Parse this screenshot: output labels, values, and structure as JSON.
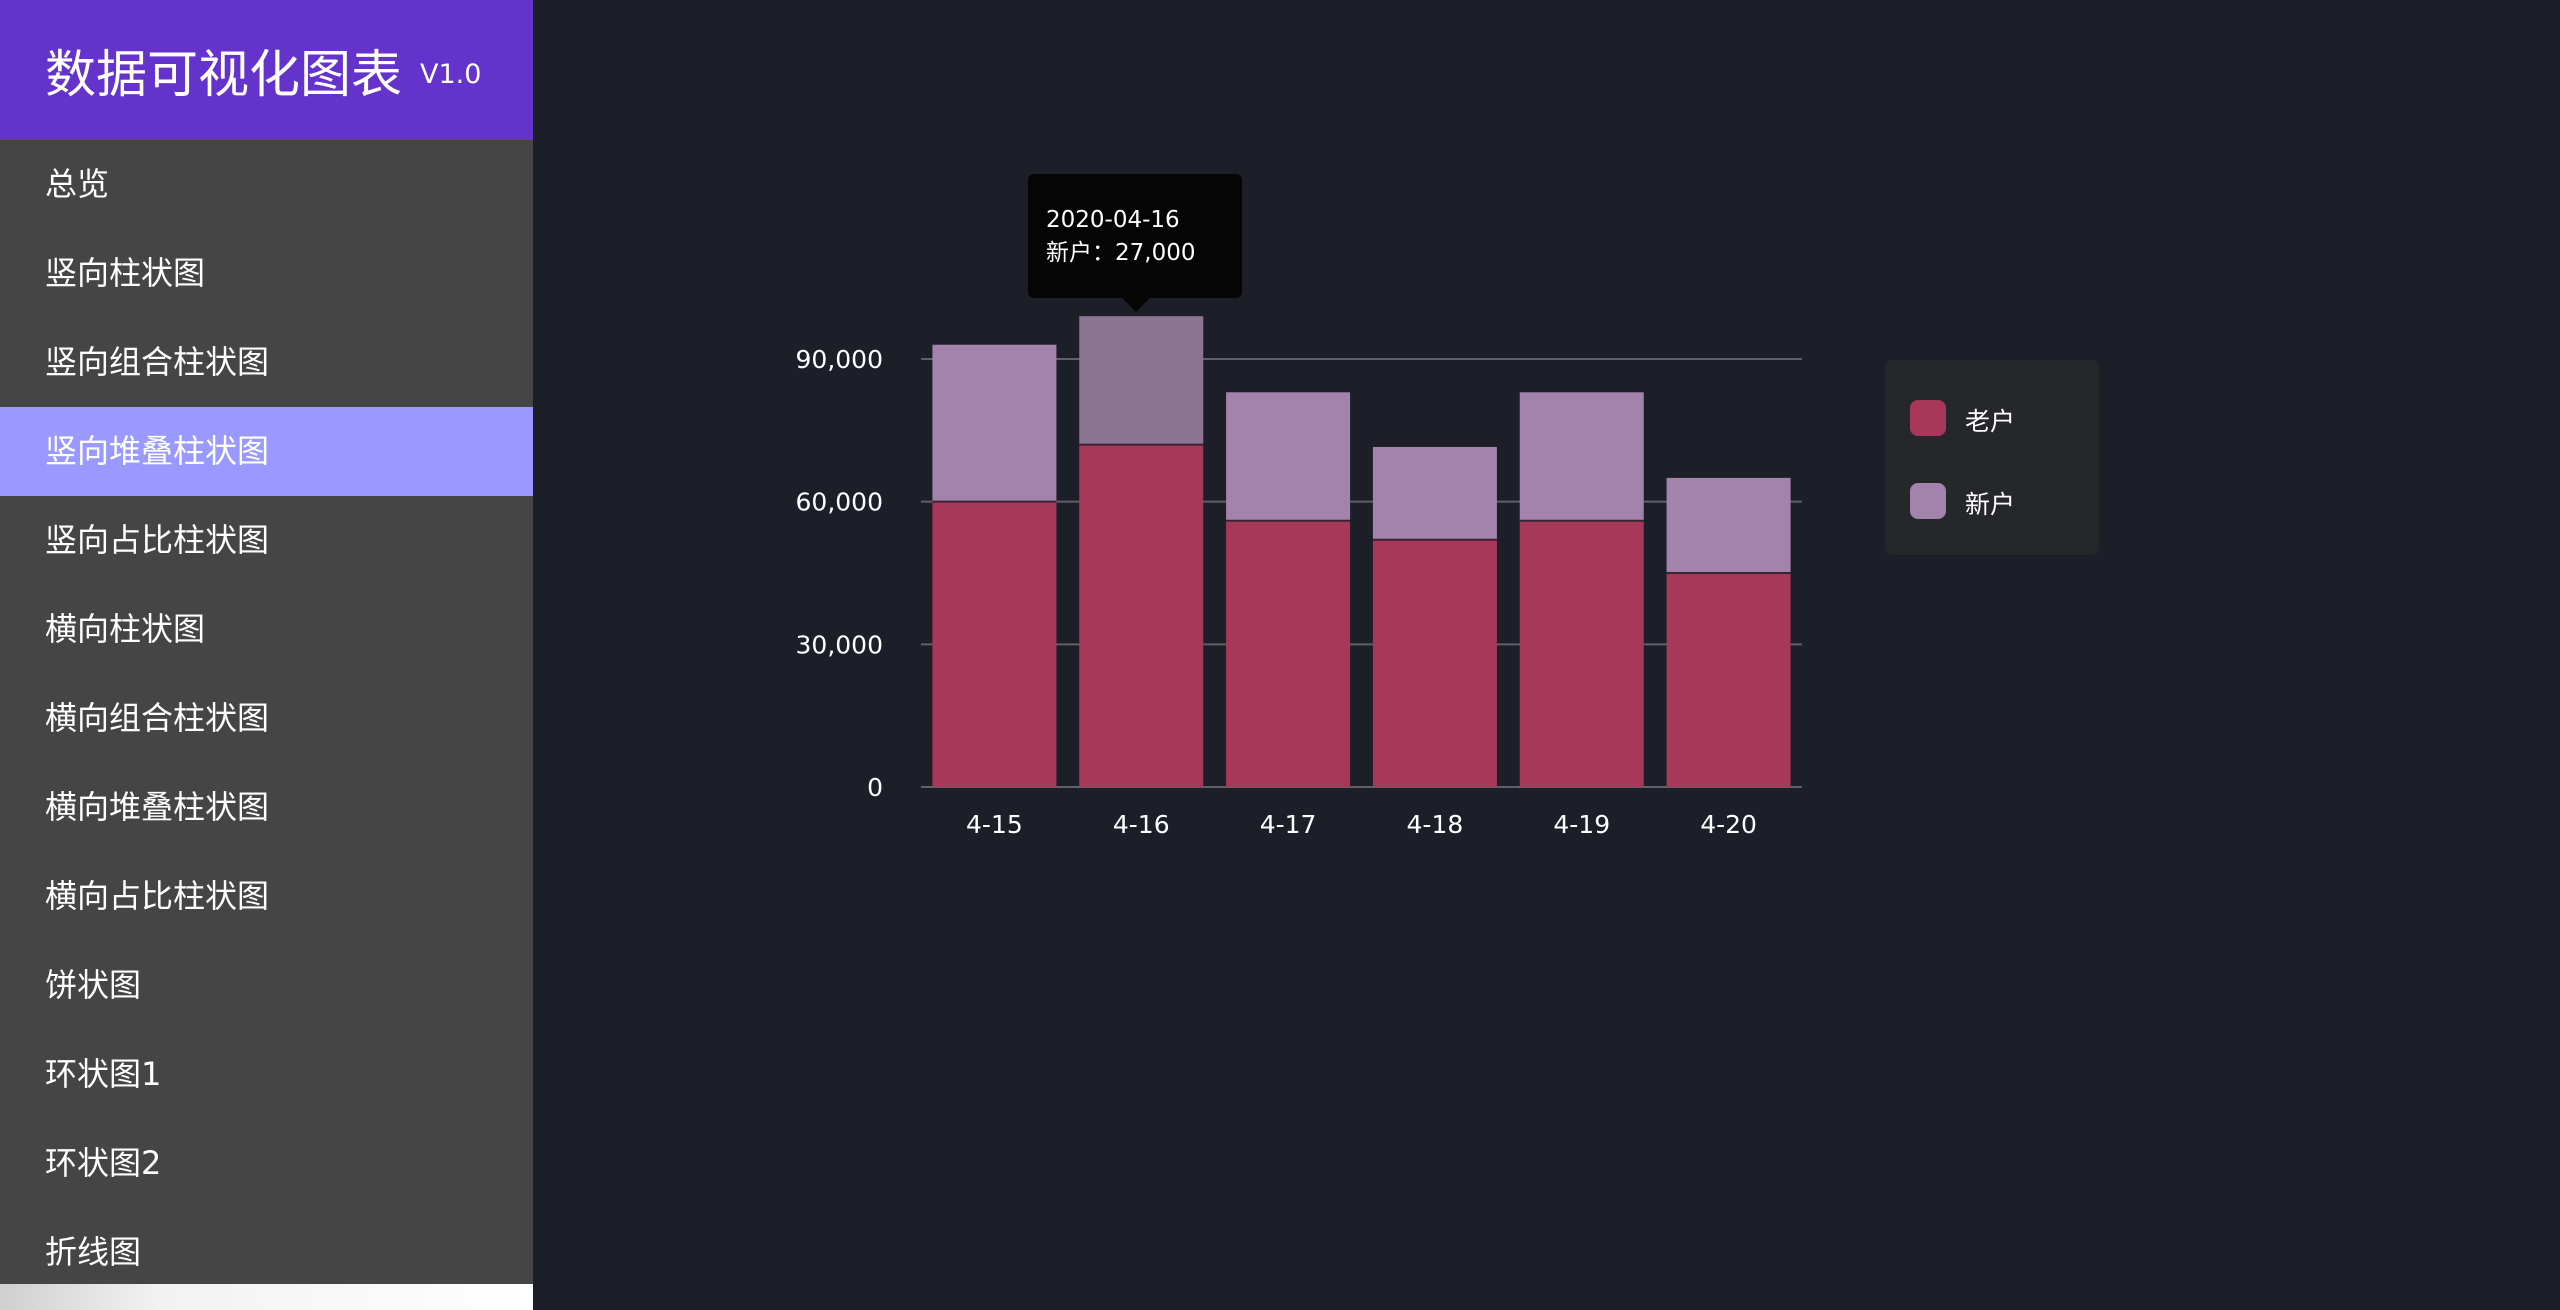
{
  "brand": {
    "title": "数据可视化图表",
    "version": "V1.0"
  },
  "menu": [
    {
      "label": "总览",
      "active": false
    },
    {
      "label": "竖向柱状图",
      "active": false
    },
    {
      "label": "竖向组合柱状图",
      "active": false
    },
    {
      "label": "竖向堆叠柱状图",
      "active": true
    },
    {
      "label": "竖向占比柱状图",
      "active": false
    },
    {
      "label": "横向柱状图",
      "active": false
    },
    {
      "label": "横向组合柱状图",
      "active": false
    },
    {
      "label": "横向堆叠柱状图",
      "active": false
    },
    {
      "label": "横向占比柱状图",
      "active": false
    },
    {
      "label": "饼状图",
      "active": false
    },
    {
      "label": "环状图1",
      "active": false
    },
    {
      "label": "环状图2",
      "active": false
    },
    {
      "label": "折线图",
      "active": false
    }
  ],
  "colors": {
    "old_customer": "#a8385a",
    "new_customer": "#a382ab",
    "highlight_new_customer": "#8c7493",
    "grid": "#5f6068",
    "axis_text": "#ffffff"
  },
  "tooltip": {
    "date": "2020-04-16",
    "label": "新户：27,000"
  },
  "chart_data": {
    "type": "bar",
    "stacked": true,
    "categories": [
      "4-15",
      "4-16",
      "4-17",
      "4-18",
      "4-19",
      "4-20"
    ],
    "series": [
      {
        "name": "老户",
        "values": [
          60000,
          72000,
          56000,
          52000,
          56000,
          45000
        ]
      },
      {
        "name": "新户",
        "values": [
          33000,
          27000,
          27000,
          19500,
          27000,
          20000
        ]
      }
    ],
    "ylim": [
      0,
      90000
    ],
    "yticks": [
      "0",
      "30,000",
      "60,000",
      "90,000"
    ],
    "highlight_category": "4-16",
    "legend_position": "right",
    "grid": true
  }
}
